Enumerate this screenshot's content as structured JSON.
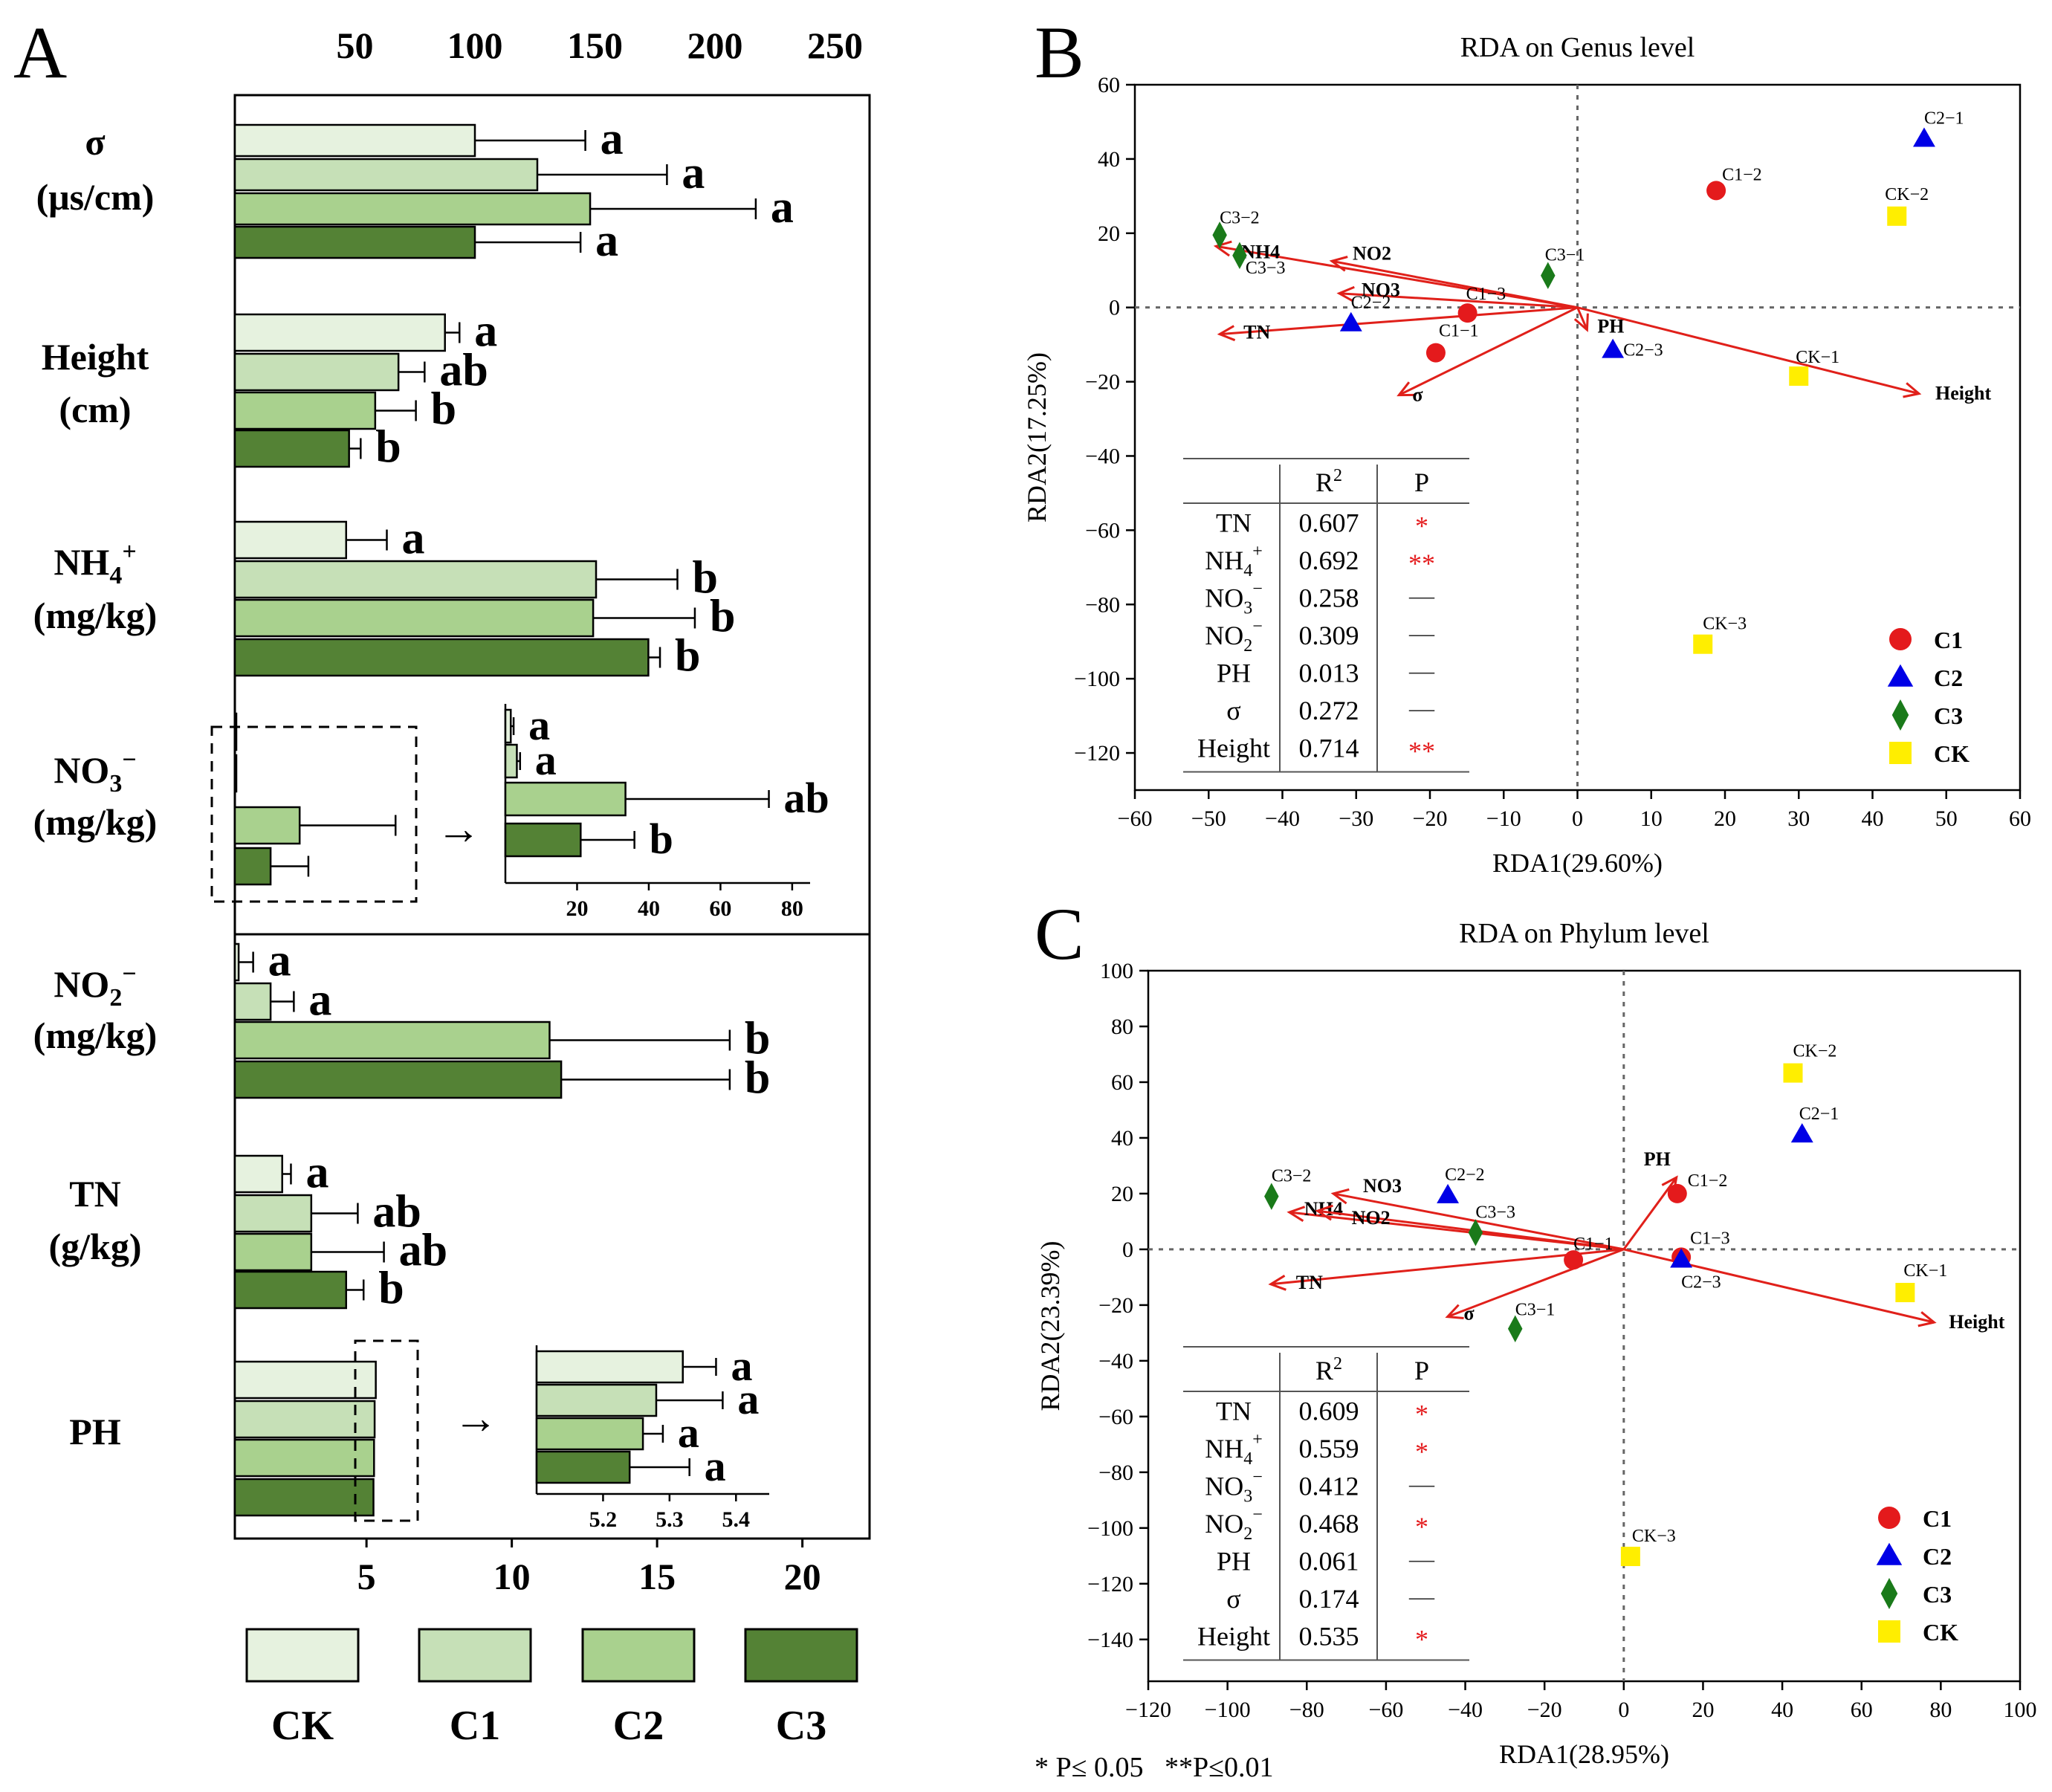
{
  "panel_labels": {
    "a": "A",
    "b": "B",
    "c": "C"
  },
  "colors": {
    "ck": "#e6f2df",
    "c1": "#c6e0b7",
    "c2": "#a9d18e",
    "c3": "#548235",
    "red": "#e41a1c",
    "blue": "#0000e6",
    "green": "#1a7a1a",
    "yellow": "#ffee00",
    "arrow": "#e0201a"
  },
  "footnote": "* P≤ 0.05   **P≤0.01",
  "chart_data": [
    {
      "type": "bar",
      "orientation": "horizontal",
      "title": "",
      "top_axis": {
        "range": [
          0,
          265
        ],
        "ticks": [
          50,
          100,
          150,
          200,
          250
        ]
      },
      "bottom_axis": {
        "range": [
          0,
          22
        ],
        "ticks": [
          5,
          10,
          15,
          20
        ]
      },
      "legend": [
        {
          "label": "CK",
          "color_key": "ck"
        },
        {
          "label": "C1",
          "color_key": "c1"
        },
        {
          "label": "C2",
          "color_key": "c2"
        },
        {
          "label": "C3",
          "color_key": "c3"
        }
      ],
      "groups": [
        {
          "key": "sigma",
          "label1": "σ",
          "label2": "(μs/cm)",
          "axis": "top",
          "values": [
            100,
            126,
            148,
            100
          ],
          "errors": [
            46,
            54,
            69,
            44
          ],
          "letters": [
            "a",
            "a",
            "a",
            "a"
          ]
        },
        {
          "key": "height",
          "label1": "Height",
          "label2": "(cm)",
          "axis": "bottom",
          "values": [
            7.7,
            6.1,
            5.3,
            4.4
          ],
          "errors": [
            0.5,
            0.9,
            1.4,
            0.4
          ],
          "letters": [
            "a",
            "ab",
            "b",
            "b"
          ]
        },
        {
          "key": "nh4",
          "label1": "NH",
          "label1_sub": "4",
          "label1_sup": "+",
          "label2": "(mg/kg)",
          "axis": "bottom",
          "values": [
            4.3,
            12.9,
            12.8,
            14.7
          ],
          "errors": [
            1.4,
            2.8,
            3.5,
            0.4
          ],
          "letters": [
            "a",
            "b",
            "b",
            "b"
          ]
        },
        {
          "key": "no3",
          "label1": "NO",
          "label1_sub": "3",
          "label1_sup": "−",
          "label2": "(mg/kg)",
          "axis": "bottom",
          "values": [
            0.12,
            0.25,
            2.7,
            1.7
          ],
          "errors": [
            0.05,
            0.05,
            3.3,
            1.3
          ],
          "letters": [
            "a",
            "a",
            "ab",
            "b"
          ],
          "inset": {
            "axis_range": [
              0,
              85
            ],
            "ticks": [
              20,
              40,
              60,
              80
            ],
            "values": [
              1.5,
              3.2,
              33.5,
              21.0
            ],
            "errors": [
              0.8,
              0.9,
              40,
              15
            ],
            "letters": [
              "a",
              "a",
              "ab",
              "b"
            ]
          }
        },
        {
          "key": "no2",
          "label1": "NO",
          "label1_sub": "2",
          "label1_sup": "−",
          "label2": "(mg/kg)",
          "axis": "bottom",
          "values": [
            0.6,
            1.7,
            11.3,
            11.7
          ],
          "errors": [
            0.5,
            0.8,
            6.2,
            5.8
          ],
          "letters": [
            "a",
            "a",
            "b",
            "b"
          ]
        },
        {
          "key": "tn",
          "label1": "TN",
          "label1_sub": "",
          "label1_sup": "",
          "label2": "(g/kg)",
          "axis": "bottom",
          "values": [
            2.1,
            3.1,
            3.1,
            4.3
          ],
          "errors": [
            0.3,
            1.6,
            2.5,
            0.6
          ],
          "letters": [
            "a",
            "ab",
            "ab",
            "b"
          ]
        },
        {
          "key": "ph",
          "label1": "PH",
          "label1_sub": "",
          "label1_sup": "",
          "label2": "",
          "axis": "bottom",
          "values": [
            5.32,
            5.28,
            5.26,
            5.24
          ],
          "errors": [
            0.05,
            0.1,
            0.03,
            0.09
          ],
          "letters": [
            "a",
            "a",
            "a",
            "a"
          ],
          "inset": {
            "axis_range": [
              5.1,
              5.45
            ],
            "ticks": [
              5.2,
              5.3,
              5.4
            ],
            "values": [
              5.32,
              5.28,
              5.26,
              5.24
            ],
            "errors": [
              0.05,
              0.1,
              0.03,
              0.09
            ],
            "letters": [
              "a",
              "a",
              "a",
              "a"
            ]
          }
        }
      ]
    },
    {
      "type": "scatter",
      "title": "RDA on Genus level",
      "xlabel": "RDA1(29.60%)",
      "ylabel": "RDA2(17.25%)",
      "xlim": [
        -60,
        60
      ],
      "ylim": [
        -130,
        60
      ],
      "xticks": [
        -60,
        -50,
        -40,
        -30,
        -20,
        -10,
        0,
        10,
        20,
        30,
        40,
        50,
        60
      ],
      "yticks": [
        60,
        40,
        20,
        0,
        -20,
        -40,
        -60,
        -80,
        -100,
        -120
      ],
      "points": [
        {
          "label": "C1−2",
          "group": "C1",
          "x": 18.8,
          "y": 31.5
        },
        {
          "label": "C1−3",
          "group": "C1",
          "x": -14.9,
          "y": -1.5
        },
        {
          "label": "C1−1",
          "group": "C1",
          "x": -19.2,
          "y": -12.2
        },
        {
          "label": "C2−1",
          "group": "C2",
          "x": 47.0,
          "y": 45.5
        },
        {
          "label": "C2−2",
          "group": "C2",
          "x": -30.7,
          "y": -4.2
        },
        {
          "label": "C2−3",
          "group": "C2",
          "x": 4.8,
          "y": -11.4
        },
        {
          "label": "C3−2",
          "group": "C3",
          "x": -48.5,
          "y": 19.5
        },
        {
          "label": "C3−3",
          "group": "C3",
          "x": -45.8,
          "y": 14.0
        },
        {
          "label": "C3−1",
          "group": "C3",
          "x": -4.0,
          "y": 8.6
        },
        {
          "label": "CK−2",
          "group": "CK",
          "x": 43.3,
          "y": 24.6
        },
        {
          "label": "CK−1",
          "group": "CK",
          "x": 30.0,
          "y": -18.5
        },
        {
          "label": "CK−3",
          "group": "CK",
          "x": 17.0,
          "y": -90.7
        }
      ],
      "vectors": [
        {
          "label": "NH4",
          "x": -49.0,
          "y": 16.5
        },
        {
          "label": "NO2",
          "x": -33.3,
          "y": 12.5
        },
        {
          "label": "NO3",
          "x": -32.3,
          "y": 3.8
        },
        {
          "label": "TN",
          "x": -48.5,
          "y": -7.2
        },
        {
          "label": "σ",
          "x": -24.2,
          "y": -23.6
        },
        {
          "label": "PH",
          "x": 1.3,
          "y": -6.0
        },
        {
          "label": "Height",
          "x": 46.3,
          "y": -23.2
        }
      ],
      "legend": [
        "C1",
        "C2",
        "C3",
        "CK"
      ],
      "table": {
        "headers": [
          "",
          "R2",
          "P"
        ],
        "rows": [
          {
            "var": "TN",
            "r2": "0.607",
            "p": "*"
          },
          {
            "var": "NH4+",
            "r2": "0.692",
            "p": "**"
          },
          {
            "var": "NO3−",
            "r2": "0.258",
            "p": "—"
          },
          {
            "var": "NO2−",
            "r2": "0.309",
            "p": "—"
          },
          {
            "var": "PH",
            "r2": "0.013",
            "p": "—"
          },
          {
            "var": "σ",
            "r2": "0.272",
            "p": "—"
          },
          {
            "var": "Height",
            "r2": "0.714",
            "p": "**"
          }
        ]
      }
    },
    {
      "type": "scatter",
      "title": "RDA on Phylum level",
      "xlabel": "RDA1(28.95%)",
      "ylabel": "RDA2(23.39%)",
      "xlim": [
        -120,
        100
      ],
      "ylim": [
        -155,
        100
      ],
      "xticks": [
        -120,
        -100,
        -80,
        -60,
        -40,
        -20,
        0,
        20,
        40,
        60,
        80,
        100
      ],
      "yticks": [
        100,
        80,
        60,
        40,
        20,
        0,
        -20,
        -40,
        -60,
        -80,
        -100,
        -120,
        -140
      ],
      "points": [
        {
          "label": "C1−2",
          "group": "C1",
          "x": 13.5,
          "y": 20.0
        },
        {
          "label": "C1−1",
          "group": "C1",
          "x": -12.7,
          "y": -3.8
        },
        {
          "label": "C1−3",
          "group": "C1",
          "x": 14.5,
          "y": -2.8
        },
        {
          "label": "C2−1",
          "group": "C2",
          "x": 45.0,
          "y": 41.3
        },
        {
          "label": "C2−2",
          "group": "C2",
          "x": -44.4,
          "y": 19.5
        },
        {
          "label": "C2−3",
          "group": "C2",
          "x": 14.5,
          "y": -3.6
        },
        {
          "label": "C3−2",
          "group": "C3",
          "x": -88.9,
          "y": 19.0
        },
        {
          "label": "C3−3",
          "group": "C3",
          "x": -37.4,
          "y": 6.0
        },
        {
          "label": "C3−1",
          "group": "C3",
          "x": -27.4,
          "y": -28.5
        },
        {
          "label": "CK−2",
          "group": "CK",
          "x": 42.7,
          "y": 63.3
        },
        {
          "label": "CK−1",
          "group": "CK",
          "x": 71.0,
          "y": -15.5
        },
        {
          "label": "CK−3",
          "group": "CK",
          "x": 1.7,
          "y": -110.2
        }
      ],
      "vectors": [
        {
          "label": "NO3",
          "x": -73.3,
          "y": 20.0
        },
        {
          "label": "NH4",
          "x": -84.4,
          "y": 13.3
        },
        {
          "label": "NO2",
          "x": -77.3,
          "y": 13.8
        },
        {
          "label": "TN",
          "x": -89.1,
          "y": -12.5
        },
        {
          "label": "σ",
          "x": -44.5,
          "y": -24.2
        },
        {
          "label": "PH",
          "x": 13.3,
          "y": 25.8
        },
        {
          "label": "Height",
          "x": 78.3,
          "y": -26.2
        }
      ],
      "legend": [
        "C1",
        "C2",
        "C3",
        "CK"
      ],
      "table": {
        "headers": [
          "",
          "R2",
          "P"
        ],
        "rows": [
          {
            "var": "TN",
            "r2": "0.609",
            "p": "*"
          },
          {
            "var": "NH4+",
            "r2": "0.559",
            "p": "*"
          },
          {
            "var": "NO3−",
            "r2": "0.412",
            "p": "—"
          },
          {
            "var": "NO2−",
            "r2": "0.468",
            "p": "*"
          },
          {
            "var": "PH",
            "r2": "0.061",
            "p": "—"
          },
          {
            "var": "σ",
            "r2": "0.174",
            "p": "—"
          },
          {
            "var": "Height",
            "r2": "0.535",
            "p": "*"
          }
        ]
      }
    }
  ]
}
